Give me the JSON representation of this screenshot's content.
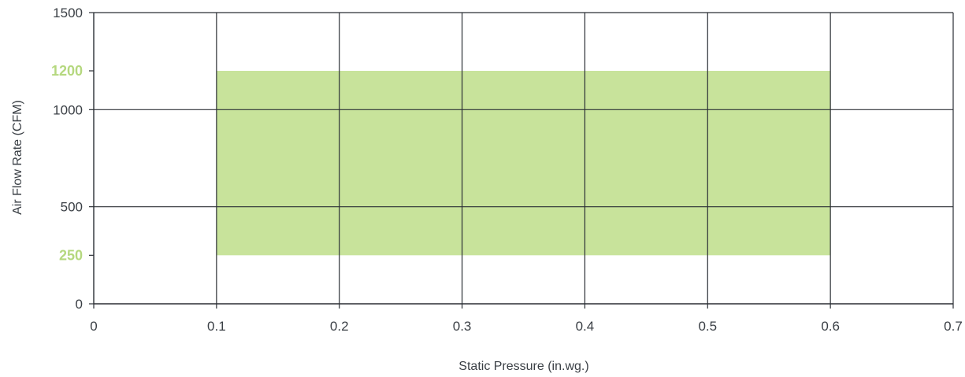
{
  "chart_data": {
    "type": "area",
    "xlabel": "Static Pressure (in.wg.)",
    "ylabel": "Air Flow Rate (CFM)",
    "xlim": [
      0,
      0.7
    ],
    "ylim": [
      0,
      1500
    ],
    "x_ticks": [
      "0",
      "0.1",
      "0.2",
      "0.3",
      "0.4",
      "0.5",
      "0.6",
      "0.7"
    ],
    "y_ticks": [
      {
        "value": 0,
        "label": "0"
      },
      {
        "value": 250,
        "label": "250",
        "highlight": true
      },
      {
        "value": 500,
        "label": "500"
      },
      {
        "value": 1000,
        "label": "1000"
      },
      {
        "value": 1200,
        "label": "1200",
        "highlight": true
      },
      {
        "value": 1500,
        "label": "1500"
      }
    ],
    "x_gridlines": [
      0.1,
      0.2,
      0.3,
      0.4,
      0.5,
      0.6
    ],
    "y_gridlines": [
      500,
      1000,
      1500
    ],
    "grid": true,
    "operating_region": {
      "x_range": [
        0.1,
        0.6
      ],
      "y_range": [
        250,
        1200
      ],
      "color": "#c8e39b"
    },
    "highlight_color": "#b5d87f",
    "grid_color": "#2b2f35"
  }
}
